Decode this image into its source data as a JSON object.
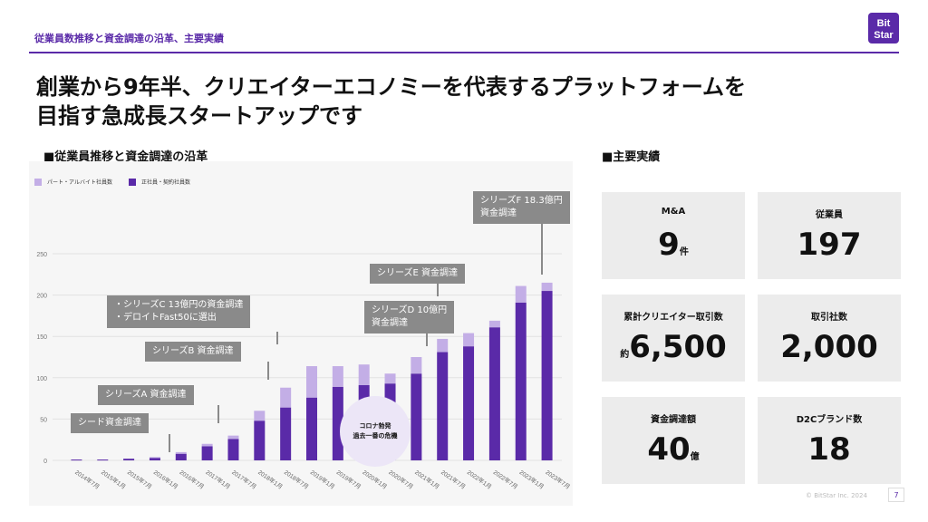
{
  "header": {
    "section_label": "従業員数推移と資金調達の沿革、主要実績"
  },
  "title": {
    "line1": "創業から9年半、クリエイターエコノミーを代表するプラットフォームを",
    "line2": "目指す急成長スタートアップです"
  },
  "left_heading": "■従業員推移と資金調達の沿革",
  "right_heading": "■主要実績",
  "logo": {
    "text_line1": "Bit",
    "text_line2": "Star",
    "color": "#5a2aa8"
  },
  "legend": {
    "part_time": "パート・アルバイト社員数",
    "full_time": "正社員・契約社員数"
  },
  "colors": {
    "full_time": "#5a2aa8",
    "part_time": "#c3aee6"
  },
  "chart_data": {
    "type": "bar",
    "categories": [
      "2014年7月",
      "2015年1月",
      "2015年7月",
      "2016年1月",
      "2016年7月",
      "2017年1月",
      "2017年7月",
      "2018年1月",
      "2018年7月",
      "2019年1月",
      "2019年7月",
      "2020年1月",
      "2020年7月",
      "2021年1月",
      "2021年7月",
      "2022年1月",
      "2022年7月",
      "2023年1月",
      "2023年7月"
    ],
    "series": [
      {
        "name": "正社員・契約社員数",
        "values": [
          1,
          1,
          2,
          3,
          8,
          17,
          26,
          48,
          64,
          76,
          89,
          91,
          93,
          105,
          131,
          138,
          161,
          191,
          205
        ]
      },
      {
        "name": "パート・アルバイト社員数",
        "values": [
          0,
          0,
          0,
          1,
          2,
          3,
          4,
          12,
          24,
          38,
          25,
          25,
          12,
          20,
          16,
          16,
          8,
          20,
          10
        ]
      }
    ],
    "stacked": true,
    "yticks": [
      0,
      50,
      100,
      150,
      200,
      250
    ],
    "ylim": [
      0,
      270
    ],
    "grid": true
  },
  "callouts": [
    {
      "text": "シード資金調達"
    },
    {
      "text": "シリーズA 資金調達"
    },
    {
      "text": "シリーズB 資金調達"
    },
    {
      "text": "・シリーズC 13億円の資金調達\n・デロイトFast50に選出"
    },
    {
      "text": "シリーズD 10億円\n資金調達"
    },
    {
      "text": "シリーズE 資金調達"
    },
    {
      "text": "シリーズF 18.3億円\n資金調達"
    }
  ],
  "badge": {
    "line1": "コロナ勃発",
    "line2": "過去一番の危機"
  },
  "stats": [
    {
      "label": "M&A",
      "value": "9",
      "unit": "件",
      "prefix": ""
    },
    {
      "label": "従業員",
      "value": "197",
      "unit": "",
      "prefix": ""
    },
    {
      "label": "累計クリエイター取引数",
      "value": "6,500",
      "unit": "",
      "prefix": "約"
    },
    {
      "label": "取引社数",
      "value": "2,000",
      "unit": "",
      "prefix": ""
    },
    {
      "label": "資金調達額",
      "value": "40",
      "unit": "億",
      "prefix": ""
    },
    {
      "label": "D2Cブランド数",
      "value": "18",
      "unit": "",
      "prefix": ""
    }
  ],
  "footer": {
    "copyright": "© BitStar Inc. 2024",
    "page": "7"
  }
}
